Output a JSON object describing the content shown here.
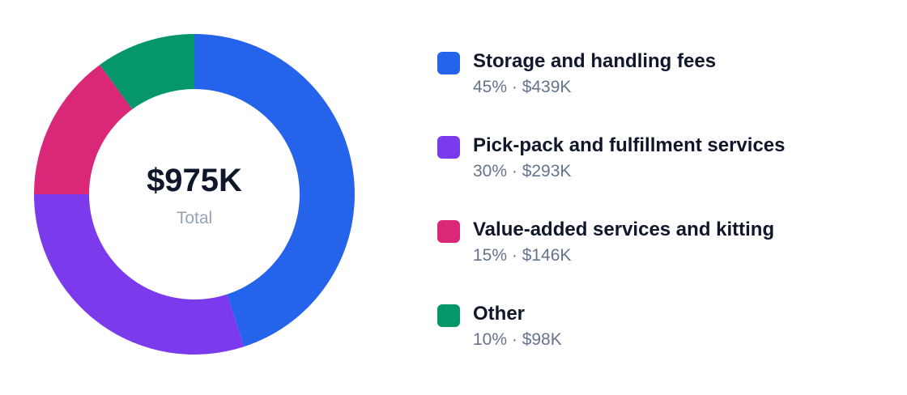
{
  "center": {
    "total": "$975K",
    "label": "Total"
  },
  "chart_data": {
    "type": "pie",
    "variant": "donut",
    "total_label": "$975K",
    "total_caption": "Total",
    "categories": [
      "Storage and handling fees",
      "Pick-pack and fulfillment services",
      "Value-added services and kitting",
      "Other"
    ],
    "values": [
      439,
      293,
      146,
      98
    ],
    "unit": "$K",
    "percents": [
      45,
      30,
      15,
      10
    ],
    "colors": [
      "#2563eb",
      "#7c3aed",
      "#db2777",
      "#059669"
    ],
    "legend_position": "right"
  },
  "legend": {
    "items": [
      {
        "label": "Storage and handling fees",
        "detail": "45% · $439K",
        "color": "#2563eb"
      },
      {
        "label": "Pick-pack and fulfillment services",
        "detail": "30% · $293K",
        "color": "#7c3aed"
      },
      {
        "label": "Value-added services and kitting",
        "detail": "15% · $146K",
        "color": "#db2777"
      },
      {
        "label": "Other",
        "detail": "10% · $98K",
        "color": "#059669"
      }
    ]
  }
}
